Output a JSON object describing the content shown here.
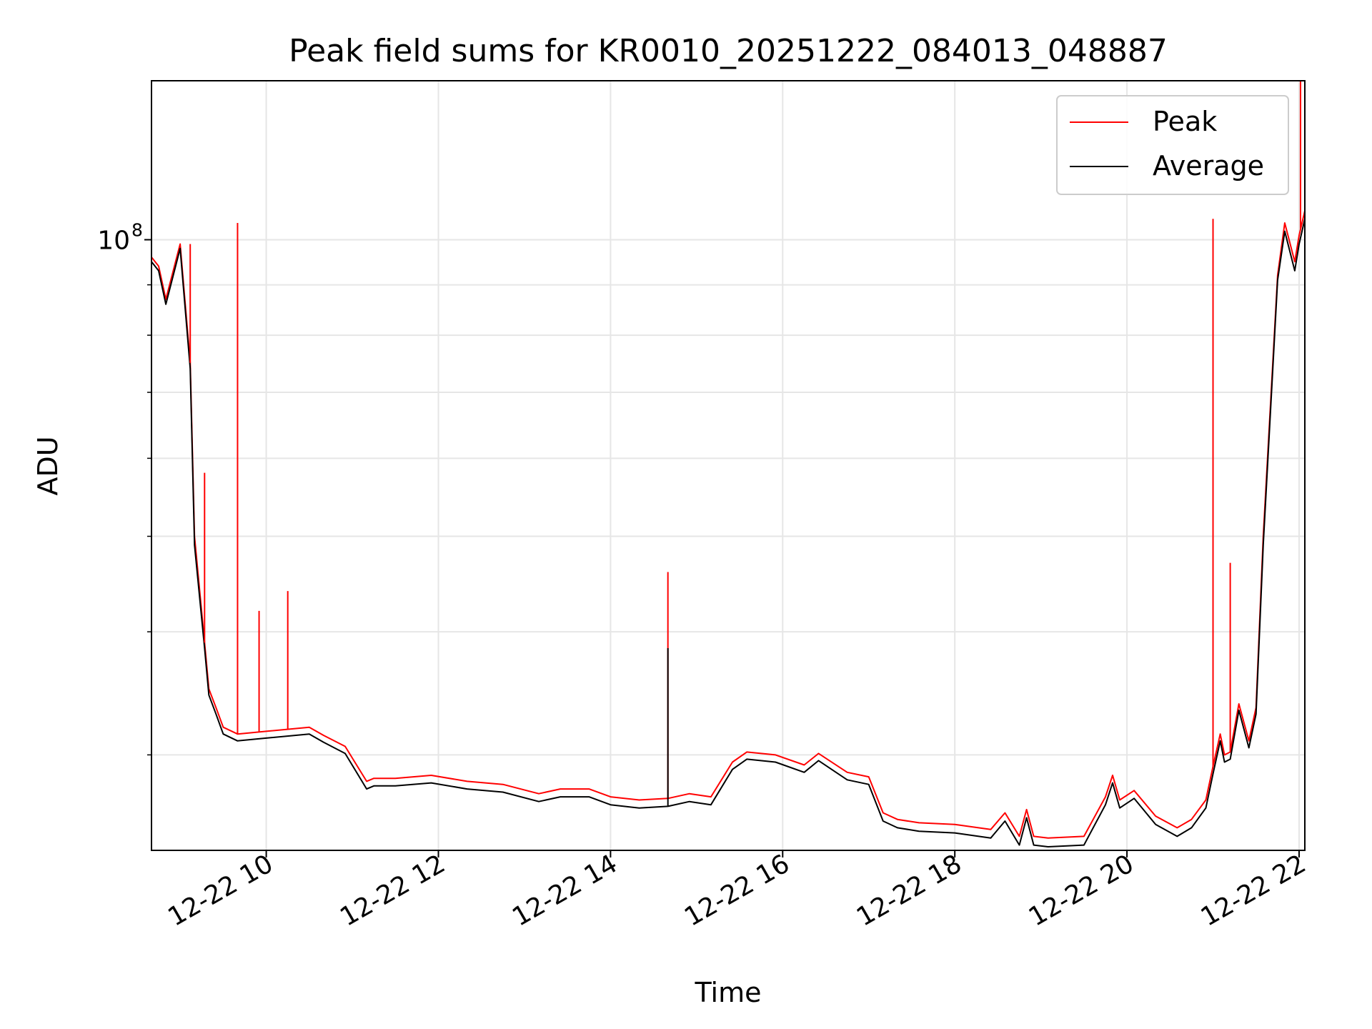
{
  "chart_data": {
    "type": "line",
    "title": "Peak field sums for KR0010_20251222_084013_048887",
    "xlabel": "Time",
    "ylabel": "ADU",
    "y_scale": "log",
    "xlim": [
      "2025-12-22 08:40",
      "2025-12-22 22:04"
    ],
    "ylim": [
      24000000,
      145000000
    ],
    "x_ticks": [
      "12-22 10",
      "12-22 12",
      "12-22 14",
      "12-22 16",
      "12-22 18",
      "12-22 20",
      "12-22 22"
    ],
    "y_tick_label": "10^8",
    "y_tick_base": "10",
    "y_tick_exp": "8",
    "grid": true,
    "legend_position": "top-right",
    "series": [
      {
        "name": "Peak",
        "color": "#ff0000",
        "x": [
          "08:40",
          "08:45",
          "08:50",
          "09:00",
          "09:07",
          "09:10",
          "09:17",
          "09:20",
          "09:25",
          "09:30",
          "09:40",
          "10:00",
          "10:30",
          "10:40",
          "10:55",
          "11:10",
          "11:15",
          "11:30",
          "11:55",
          "12:20",
          "12:45",
          "13:10",
          "13:25",
          "13:45",
          "14:00",
          "14:20",
          "14:40",
          "14:55",
          "15:10",
          "15:25",
          "15:35",
          "15:55",
          "16:15",
          "16:25",
          "16:45",
          "17:00",
          "17:10",
          "17:20",
          "17:35",
          "18:00",
          "18:25",
          "18:35",
          "18:45",
          "18:50",
          "18:55",
          "19:05",
          "19:30",
          "19:45",
          "19:50",
          "19:55",
          "20:05",
          "20:20",
          "20:35",
          "20:45",
          "20:55",
          "21:00",
          "21:05",
          "21:08",
          "21:12",
          "21:18",
          "21:25",
          "21:30",
          "21:35",
          "21:45",
          "21:50",
          "21:57",
          "22:00",
          "22:04"
        ],
        "y": [
          96000000,
          94000000,
          87000000,
          99000000,
          75000000,
          50000000,
          39000000,
          35000000,
          33500000,
          32000000,
          31500000,
          31700000,
          32000000,
          31400000,
          30600000,
          28200000,
          28400000,
          28400000,
          28600000,
          28200000,
          28000000,
          27400000,
          27700000,
          27700000,
          27200000,
          27000000,
          27100000,
          27400000,
          27200000,
          29500000,
          30200000,
          30000000,
          29300000,
          30100000,
          28800000,
          28500000,
          26200000,
          25800000,
          25600000,
          25500000,
          25200000,
          26200000,
          24800000,
          26400000,
          24800000,
          24700000,
          24800000,
          27200000,
          28600000,
          27000000,
          27600000,
          26000000,
          25300000,
          25800000,
          27000000,
          29200000,
          31500000,
          30000000,
          30200000,
          33800000,
          31000000,
          33500000,
          50000000,
          92000000,
          104000000,
          95000000,
          101000000,
          107000000
        ]
      },
      {
        "name": "Average",
        "color": "#000000",
        "x": [
          "08:40",
          "08:45",
          "08:50",
          "09:00",
          "09:07",
          "09:10",
          "09:17",
          "09:20",
          "09:25",
          "09:30",
          "09:40",
          "10:00",
          "10:30",
          "10:40",
          "10:55",
          "11:10",
          "11:15",
          "11:30",
          "11:55",
          "12:20",
          "12:45",
          "13:10",
          "13:25",
          "13:45",
          "14:00",
          "14:20",
          "14:40",
          "14:55",
          "15:10",
          "15:25",
          "15:35",
          "15:55",
          "16:15",
          "16:25",
          "16:45",
          "17:00",
          "17:10",
          "17:20",
          "17:35",
          "18:00",
          "18:25",
          "18:35",
          "18:45",
          "18:50",
          "18:55",
          "19:05",
          "19:30",
          "19:45",
          "19:50",
          "19:55",
          "20:05",
          "20:20",
          "20:35",
          "20:45",
          "20:55",
          "21:00",
          "21:05",
          "21:08",
          "21:12",
          "21:18",
          "21:25",
          "21:30",
          "21:35",
          "21:45",
          "21:50",
          "21:57",
          "22:00",
          "22:04"
        ],
        "y": [
          95000000,
          93000000,
          86000000,
          98000000,
          74000000,
          49000000,
          38500000,
          34500000,
          33000000,
          31500000,
          31000000,
          31200000,
          31500000,
          30900000,
          30100000,
          27700000,
          27900000,
          27900000,
          28100000,
          27700000,
          27500000,
          26900000,
          27200000,
          27200000,
          26700000,
          26500000,
          26600000,
          26900000,
          26700000,
          29000000,
          29700000,
          29500000,
          28800000,
          29600000,
          28300000,
          28000000,
          25700000,
          25300000,
          25100000,
          25000000,
          24700000,
          25700000,
          24300000,
          25900000,
          24300000,
          24200000,
          24300000,
          26700000,
          28100000,
          26500000,
          27100000,
          25500000,
          24800000,
          25300000,
          26500000,
          28700000,
          31000000,
          29500000,
          29700000,
          33300000,
          30500000,
          33000000,
          49000000,
          91000000,
          102000000,
          93000000,
          99000000,
          105000000
        ]
      }
    ],
    "spikes": [
      {
        "series": "Peak",
        "x": "09:07",
        "y": 99000000
      },
      {
        "series": "Peak",
        "x": "09:17",
        "y": 58000000
      },
      {
        "series": "Peak",
        "x": "09:40",
        "y": 104000000
      },
      {
        "series": "Peak",
        "x": "09:55",
        "y": 42000000
      },
      {
        "series": "Peak",
        "x": "10:15",
        "y": 44000000
      },
      {
        "series": "Peak",
        "x": "14:40",
        "y": 46000000
      },
      {
        "series": "Average",
        "x": "14:40",
        "y": 38500000
      },
      {
        "series": "Peak",
        "x": "21:00",
        "y": 105000000
      },
      {
        "series": "Peak",
        "x": "21:12",
        "y": 47000000
      },
      {
        "series": "Peak",
        "x": "22:01",
        "y": 145000000
      }
    ]
  }
}
